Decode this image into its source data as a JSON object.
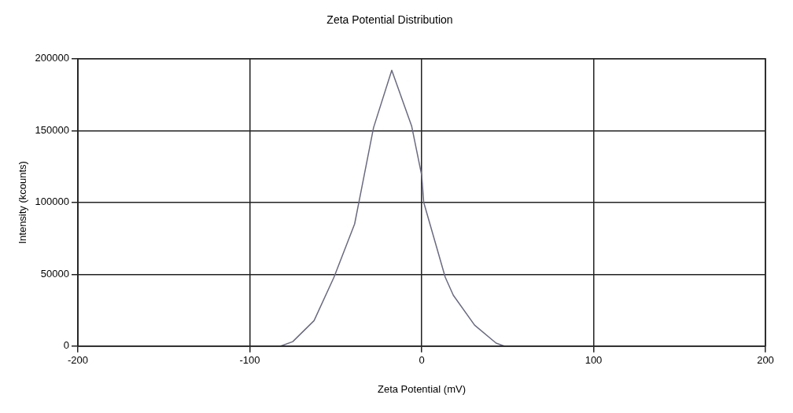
{
  "chart_data": {
    "type": "line",
    "title": "Zeta Potential Distribution",
    "xlabel": "Zeta Potential (mV)",
    "ylabel": "Intensity (kcounts)",
    "x": [
      -82,
      -75,
      -62.6,
      -51,
      -39,
      -28,
      -17.4,
      -5.8,
      0,
      1.2,
      13.7,
      18.4,
      30.8,
      43.3,
      48
    ],
    "series": [
      {
        "color": "#6a6a80",
        "values": [
          0,
          3100,
          17700,
          48000,
          85000,
          152000,
          192000,
          153000,
          119000,
          100000,
          48000,
          35400,
          14600,
          2100,
          0
        ]
      }
    ],
    "xlim": [
      -200,
      200
    ],
    "xticks": [
      -200,
      -100,
      0,
      100,
      200
    ],
    "ylim": [
      0,
      200000
    ],
    "yticks": [
      0,
      50000,
      100000,
      150000,
      200000
    ],
    "grid": true,
    "legend": false,
    "marker": "none",
    "line_style": "solid"
  }
}
